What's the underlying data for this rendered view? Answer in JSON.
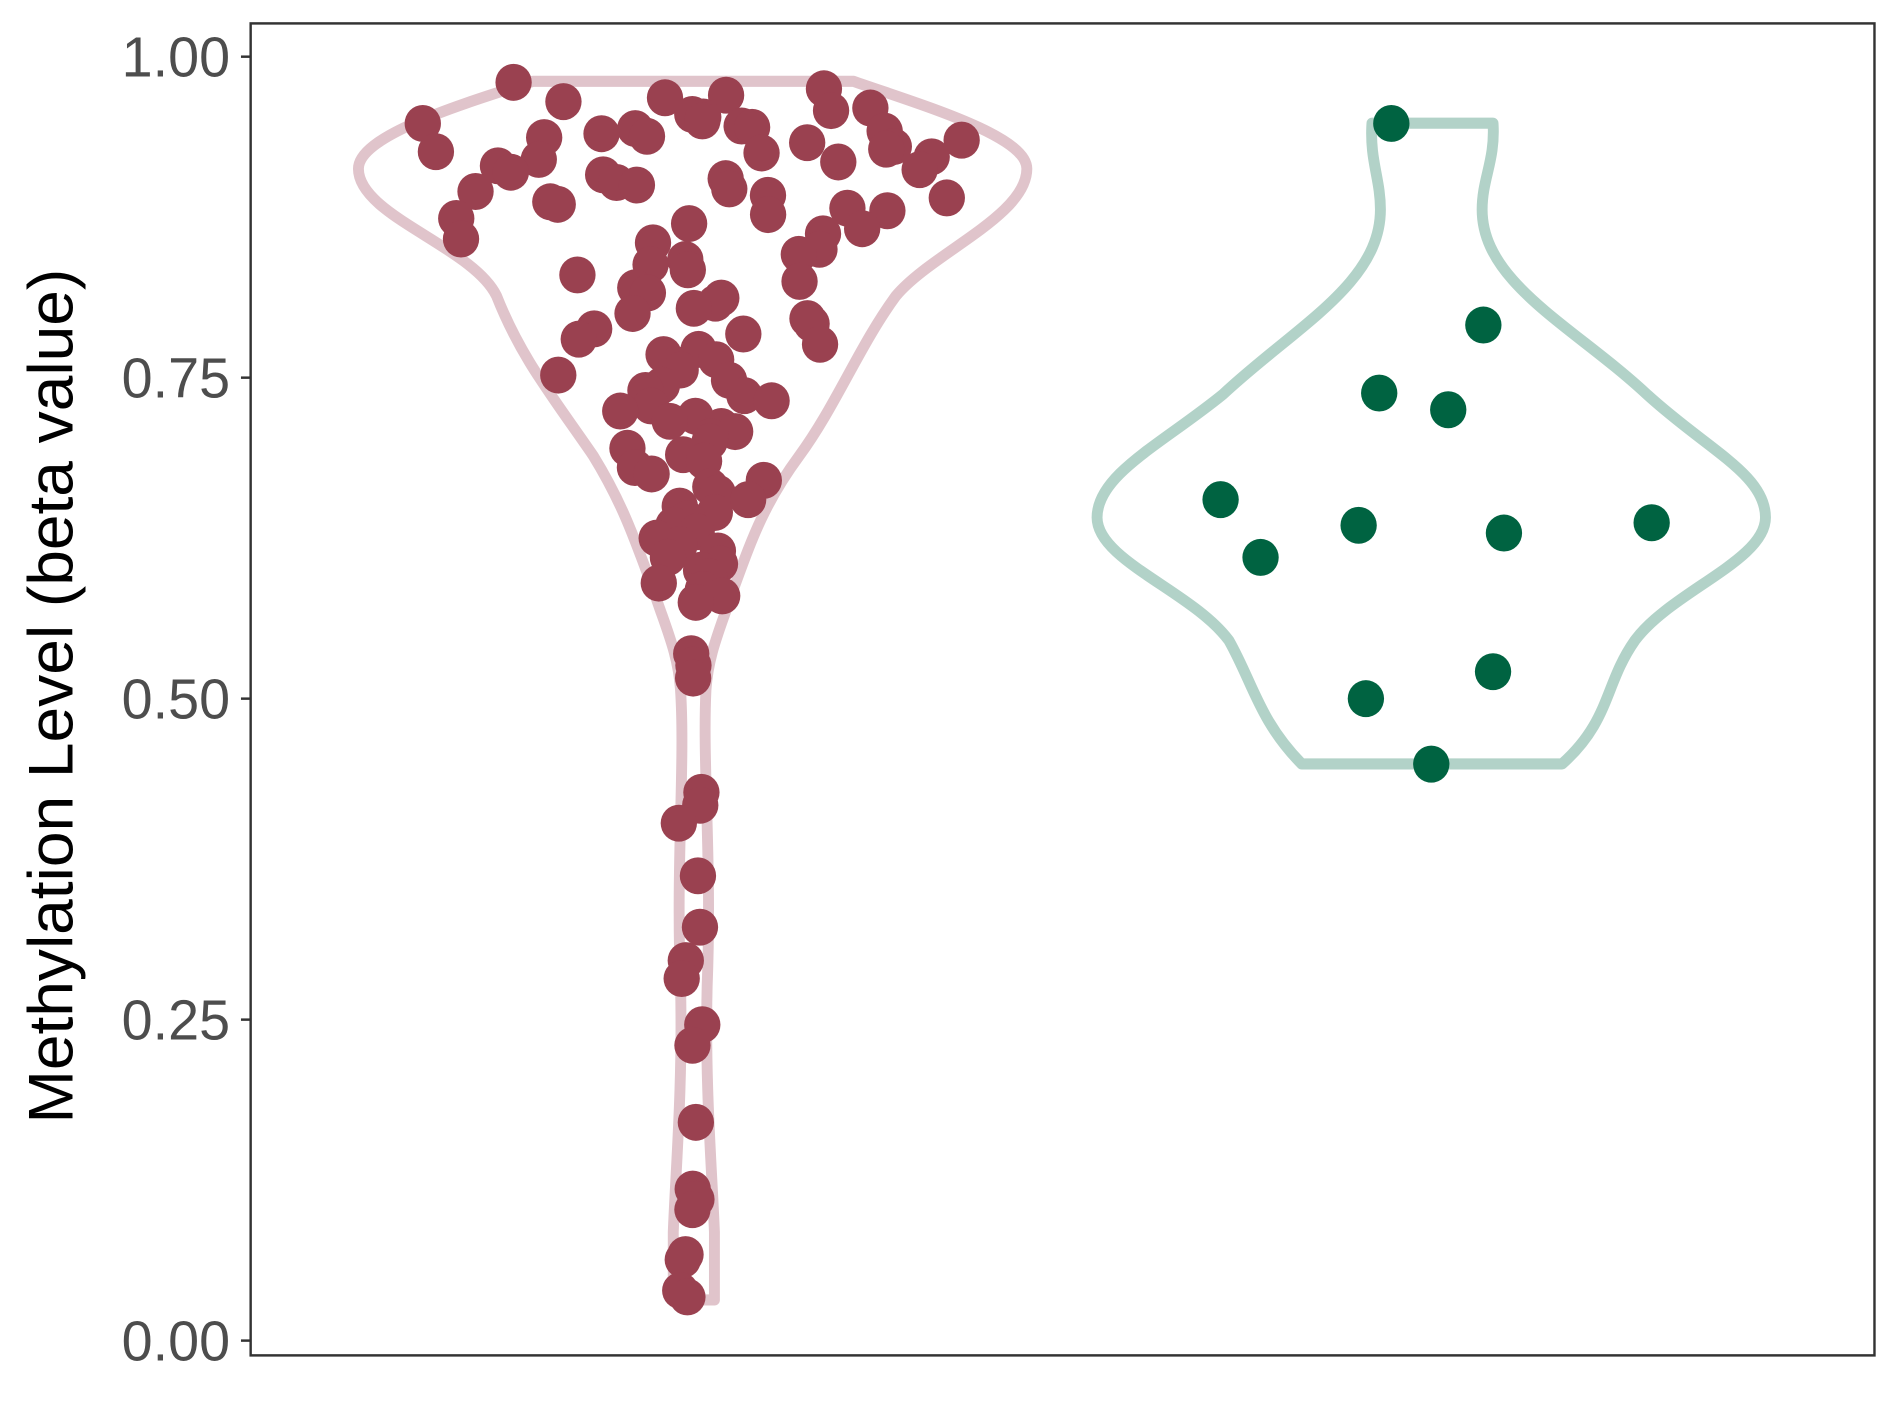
{
  "chart_data": {
    "type": "violin",
    "title": "",
    "xlabel": "",
    "ylabel": "Methylation Level (beta value)",
    "ylim": [
      0,
      1
    ],
    "yticks": [
      "0.00",
      "0.25",
      "0.50",
      "0.75",
      "1.00"
    ],
    "grid": false,
    "legend": "none",
    "series": [
      {
        "color": "#9a4150",
        "violin_color": "#e0c4cb",
        "values": [
          0.98,
          0.975,
          0.97,
          0.968,
          0.965,
          0.96,
          0.958,
          0.955,
          0.953,
          0.95,
          0.948,
          0.946,
          0.945,
          0.944,
          0.942,
          0.94,
          0.938,
          0.937,
          0.935,
          0.933,
          0.93,
          0.928,
          0.926,
          0.925,
          0.922,
          0.92,
          0.918,
          0.915,
          0.912,
          0.91,
          0.908,
          0.905,
          0.902,
          0.9,
          0.897,
          0.895,
          0.892,
          0.89,
          0.887,
          0.885,
          0.882,
          0.88,
          0.877,
          0.874,
          0.87,
          0.866,
          0.862,
          0.858,
          0.855,
          0.85,
          0.846,
          0.842,
          0.838,
          0.834,
          0.83,
          0.825,
          0.82,
          0.816,
          0.812,
          0.808,
          0.804,
          0.8,
          0.796,
          0.792,
          0.788,
          0.784,
          0.78,
          0.776,
          0.772,
          0.768,
          0.764,
          0.76,
          0.756,
          0.752,
          0.748,
          0.744,
          0.74,
          0.736,
          0.732,
          0.728,
          0.724,
          0.72,
          0.716,
          0.712,
          0.708,
          0.704,
          0.7,
          0.695,
          0.69,
          0.685,
          0.68,
          0.675,
          0.67,
          0.665,
          0.66,
          0.655,
          0.65,
          0.645,
          0.64,
          0.635,
          0.63,
          0.625,
          0.62,
          0.615,
          0.61,
          0.605,
          0.6,
          0.595,
          0.59,
          0.585,
          0.58,
          0.575,
          0.535,
          0.526,
          0.516,
          0.427,
          0.417,
          0.403,
          0.362,
          0.322,
          0.296,
          0.282,
          0.246,
          0.23,
          0.17,
          0.118,
          0.11,
          0.102,
          0.067,
          0.063,
          0.039,
          0.034
        ]
      },
      {
        "color": "#006341",
        "violin_color": "#b2d2c8",
        "values": [
          0.948,
          0.791,
          0.738,
          0.725,
          0.655,
          0.61,
          0.635,
          0.629,
          0.637,
          0.521,
          0.5,
          0.449
        ]
      }
    ]
  }
}
